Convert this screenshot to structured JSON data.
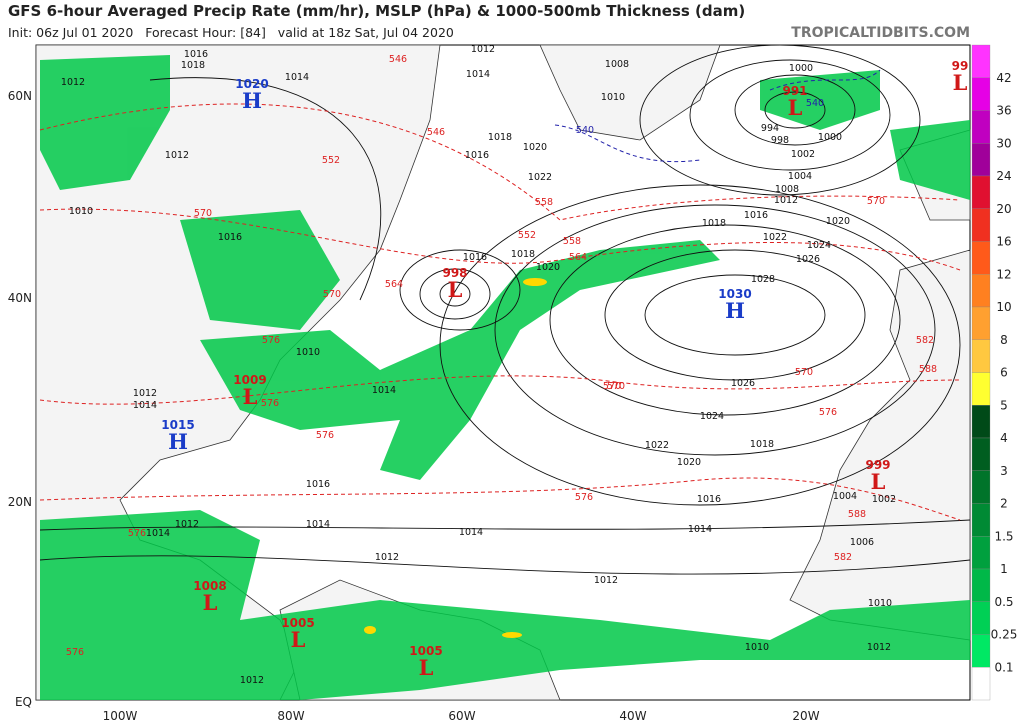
{
  "header": {
    "title": "GFS 6-hour Averaged Precip Rate (mm/hr), MSLP (hPa) & 1000-500mb Thickness (dam)",
    "subtitle": "Init: 06z Jul 01 2020   Forecast Hour: [84]   valid at 18z Sat, Jul 04 2020",
    "site": "TROPICALTIDBITS.COM"
  },
  "axes": {
    "lat": [
      "60N",
      "40N",
      "20N",
      "EQ"
    ],
    "lon": [
      "100W",
      "80W",
      "60W",
      "40W",
      "20W"
    ]
  },
  "colorbar": {
    "levels": [
      "42",
      "36",
      "30",
      "24",
      "20",
      "16",
      "12",
      "10",
      "8",
      "6",
      "5",
      "4",
      "3",
      "2",
      "1.5",
      "1",
      "0.5",
      "0.25",
      "0.1"
    ],
    "colors": [
      "#ff33ff",
      "#e600e6",
      "#c000c0",
      "#a0009a",
      "#e01030",
      "#f03020",
      "#ff5a1a",
      "#ff8020",
      "#ffa030",
      "#ffc840",
      "#ffff30",
      "#004a18",
      "#005e20",
      "#00742a",
      "#008a34",
      "#00a03e",
      "#00b848",
      "#00d055",
      "#00e864",
      "#ffffff"
    ]
  },
  "pressure_centers": [
    {
      "type": "H",
      "value": "1020"
    },
    {
      "type": "L",
      "value": "991"
    },
    {
      "type": "L",
      "value": "998"
    },
    {
      "type": "H",
      "value": "1030"
    },
    {
      "type": "L",
      "value": "1009"
    },
    {
      "type": "H",
      "value": "1015"
    },
    {
      "type": "L",
      "value": "999"
    },
    {
      "type": "L",
      "value": "1008"
    },
    {
      "type": "L",
      "value": "1005"
    },
    {
      "type": "L",
      "value": "1005"
    },
    {
      "type": "L",
      "value": "99"
    }
  ],
  "isobar_labels": [
    "1016",
    "1018",
    "1014",
    "1012",
    "1010",
    "1012",
    "1014",
    "1016",
    "1018",
    "1020",
    "1022",
    "1016",
    "1014",
    "1012",
    "1010",
    "1008",
    "1000",
    "994",
    "998",
    "1000",
    "1002",
    "1004",
    "1008",
    "1012",
    "1016",
    "1018",
    "1020",
    "1022",
    "1024",
    "1026",
    "1028",
    "1026",
    "1024",
    "1022",
    "1020",
    "1018",
    "1016",
    "1014",
    "1014",
    "1012",
    "1012",
    "1010",
    "1012",
    "1016",
    "1014",
    "1004",
    "1002",
    "1006",
    "1010",
    "1012",
    "1012",
    "1014",
    "1012",
    "1010",
    "1014",
    "1016",
    "1018",
    "1020"
  ],
  "thickness_labels": [
    "546",
    "546",
    "552",
    "558",
    "564",
    "570",
    "576",
    "582",
    "588",
    "564",
    "570",
    "576",
    "552",
    "558",
    "570",
    "570",
    "576",
    "570",
    "576",
    "582",
    "588",
    "576",
    "576",
    "576",
    "570"
  ],
  "blue_labels": [
    "540",
    "540"
  ]
}
